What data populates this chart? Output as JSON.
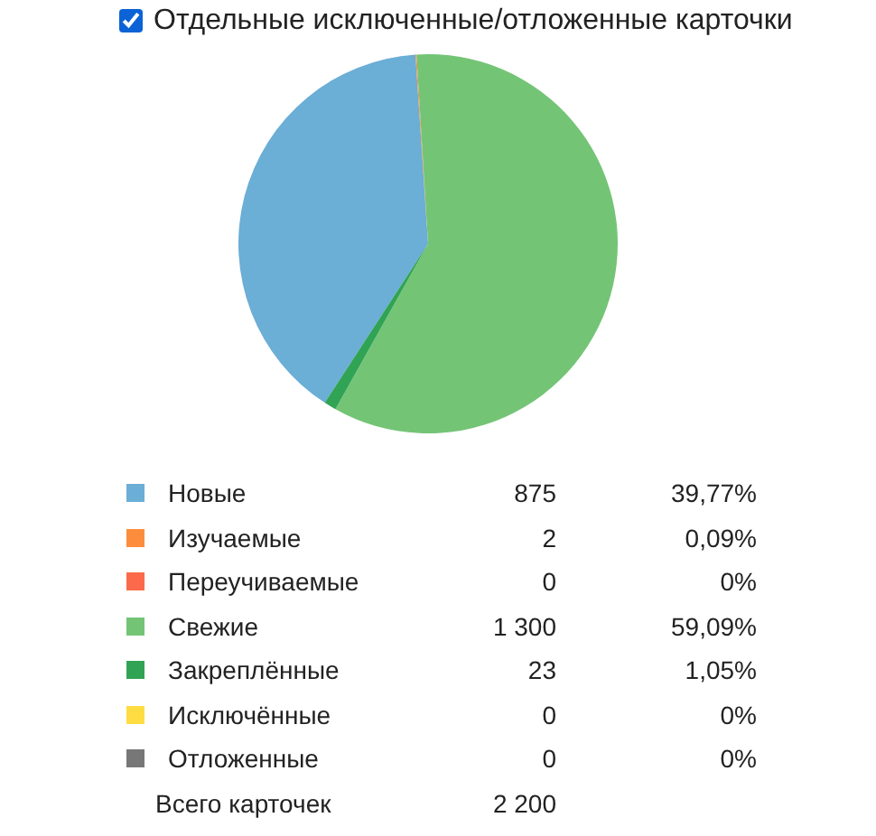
{
  "chart_data": {
    "type": "pie",
    "categories": [
      "Новые",
      "Изучаемые",
      "Переучиваемые",
      "Свежие",
      "Закреплённые",
      "Исключённые",
      "Отложенные"
    ],
    "values": [
      875,
      2,
      0,
      1300,
      23,
      0,
      0
    ],
    "colors": [
      "#6baed6",
      "#fd8d3c",
      "#fb6a4a",
      "#74c476",
      "#31a354",
      "#ffdc41",
      "#777777"
    ],
    "value_labels": [
      "875",
      "2",
      "0",
      "1 300",
      "23",
      "0",
      "0"
    ],
    "annotations": [
      "39,77%",
      "0,09%",
      "0%",
      "59,09%",
      "1,05%",
      "0%",
      "0%",
      "Всего карточек",
      "2 200",
      "Отдельные исключенные/отложенные карточки"
    ],
    "legend": "bottom"
  }
}
